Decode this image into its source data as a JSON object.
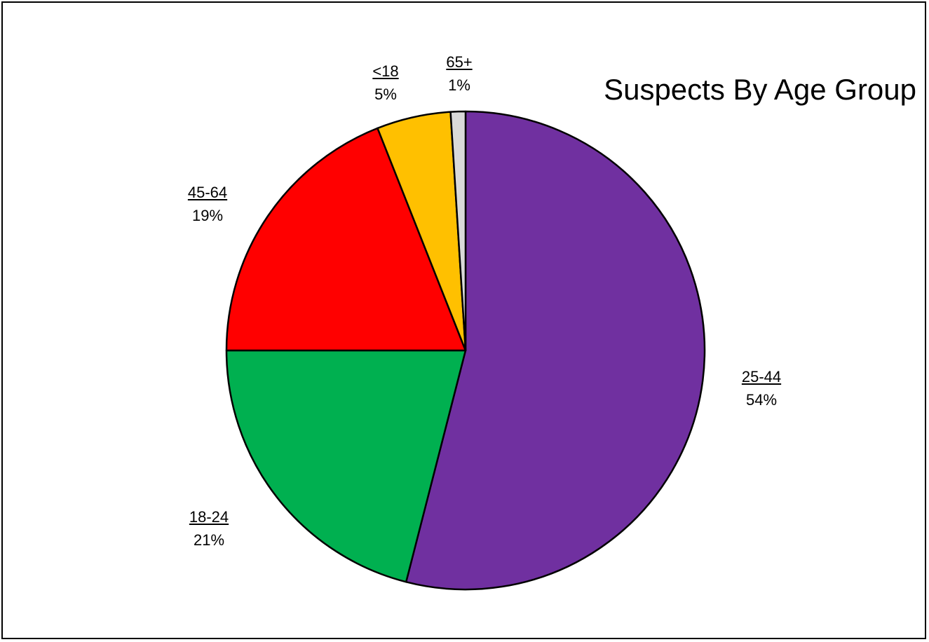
{
  "chart_data": {
    "type": "pie",
    "title": "Suspects By Age Group",
    "slices": [
      {
        "label": "25-44",
        "value": 54,
        "value_label": "54%",
        "color": "#7030A0"
      },
      {
        "label": "18-24",
        "value": 21,
        "value_label": "21%",
        "color": "#00B050"
      },
      {
        "label": "45-64",
        "value": 19,
        "value_label": "19%",
        "color": "#FF0000"
      },
      {
        "label": "<18",
        "value": 5,
        "value_label": "5%",
        "color": "#FFC000"
      },
      {
        "label": "65+",
        "value": 1,
        "value_label": "1%",
        "color": "#D9D9D9"
      }
    ],
    "start_angle": "12 o'clock",
    "direction": "clockwise",
    "legend": "none"
  }
}
